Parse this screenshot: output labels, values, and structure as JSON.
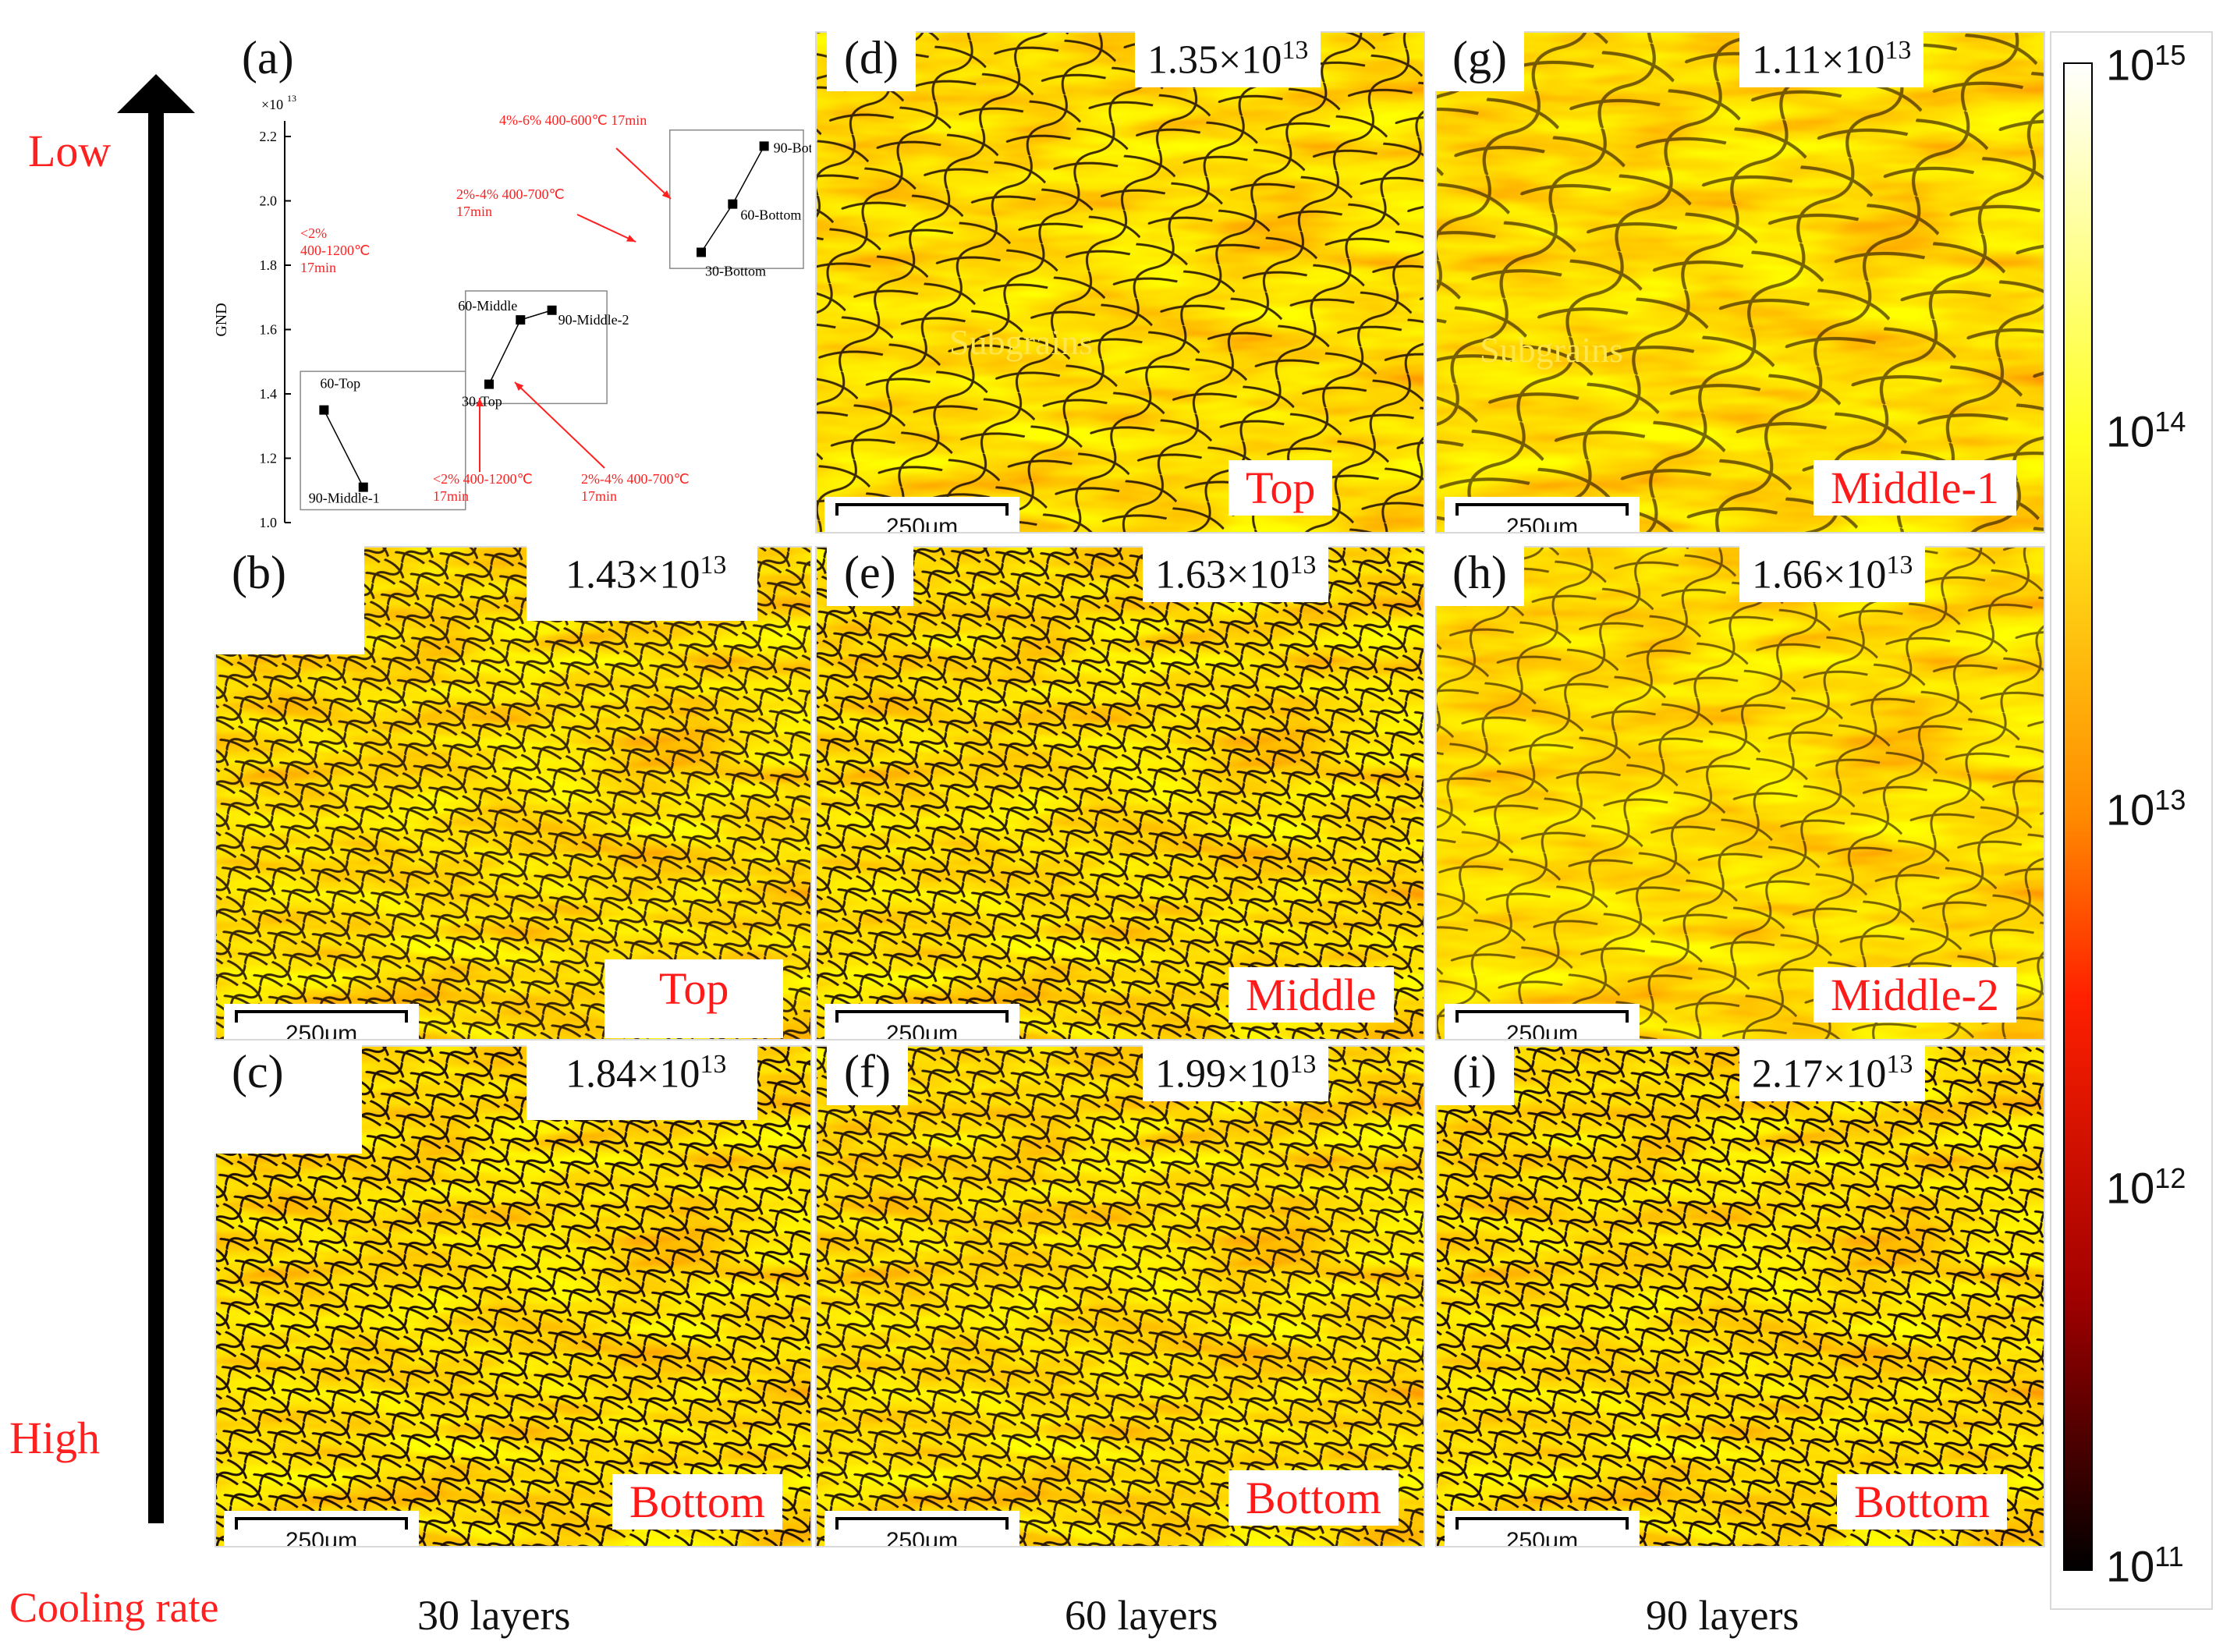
{
  "side": {
    "low": "Low",
    "high": "High",
    "cooling_rate": "Cooling rate"
  },
  "columns": [
    "30 layers",
    "60 layers",
    "90 layers"
  ],
  "scalebar": "250μm",
  "subgrains": "Subgrains",
  "panels": {
    "b": {
      "letter": "(b)",
      "mantissa": "1.43×10",
      "exp": "13",
      "pos": "Top"
    },
    "c": {
      "letter": "(c)",
      "mantissa": "1.84×10",
      "exp": "13",
      "pos": "Bottom"
    },
    "d": {
      "letter": "(d)",
      "mantissa": "1.35×10",
      "exp": "13",
      "pos": "Top"
    },
    "e": {
      "letter": "(e)",
      "mantissa": "1.63×10",
      "exp": "13",
      "pos": "Middle"
    },
    "f": {
      "letter": "(f)",
      "mantissa": "1.99×10",
      "exp": "13",
      "pos": "Bottom"
    },
    "g": {
      "letter": "(g)",
      "mantissa": "1.11×10",
      "exp": "13",
      "pos": "Middle-1"
    },
    "h": {
      "letter": "(h)",
      "mantissa": "1.66×10",
      "exp": "13",
      "pos": "Middle-2"
    },
    "i": {
      "letter": "(i)",
      "mantissa": "2.17×10",
      "exp": "13",
      "pos": "Bottom"
    }
  },
  "colorbar": {
    "labels": [
      {
        "base": "10",
        "exp": "15"
      },
      {
        "base": "10",
        "exp": "14"
      },
      {
        "base": "10",
        "exp": "13"
      },
      {
        "base": "10",
        "exp": "12"
      },
      {
        "base": "10",
        "exp": "11"
      }
    ],
    "colors": [
      "#ffffff",
      "#ffff20",
      "#ff9000",
      "#ff2000",
      "#b00000",
      "#000000"
    ]
  },
  "chart_data": {
    "type": "scatter",
    "panel_label": "(a)",
    "ylabel": "GND",
    "y_multiplier": "×10",
    "y_multiplier_exp": "13",
    "ylim": [
      1.0,
      2.2
    ],
    "yticks": [
      "1.0",
      "1.2",
      "1.4",
      "1.6",
      "1.8",
      "2.0",
      "2.2"
    ],
    "groups": [
      {
        "points": [
          {
            "label": "60-Top",
            "x": 0.5,
            "y": 1.35
          },
          {
            "label": "90-Middle-1",
            "x": 1.0,
            "y": 1.11
          }
        ]
      },
      {
        "points": [
          {
            "label": "30-Top",
            "x": 2.6,
            "y": 1.43
          },
          {
            "label": "60-Middle",
            "x": 3.0,
            "y": 1.63
          },
          {
            "label": "90-Middle-2",
            "x": 3.4,
            "y": 1.66
          }
        ]
      },
      {
        "points": [
          {
            "label": "30-Bottom",
            "x": 5.3,
            "y": 1.84
          },
          {
            "label": "60-Bottom",
            "x": 5.7,
            "y": 1.99
          },
          {
            "label": "90-Bottom",
            "x": 6.1,
            "y": 2.17
          }
        ]
      }
    ],
    "annotations": [
      {
        "lines": [
          "<2%",
          "400-1200℃",
          "17min"
        ]
      },
      {
        "lines": [
          "<2%  400-1200℃",
          "17min"
        ]
      },
      {
        "lines": [
          "2%-4%  400-700℃",
          "17min"
        ]
      },
      {
        "lines": [
          "2%-4%  400-700℃",
          "17min"
        ]
      },
      {
        "lines": [
          "4%-6%  400-600℃  17min"
        ]
      }
    ],
    "accent": "#ff2020"
  }
}
